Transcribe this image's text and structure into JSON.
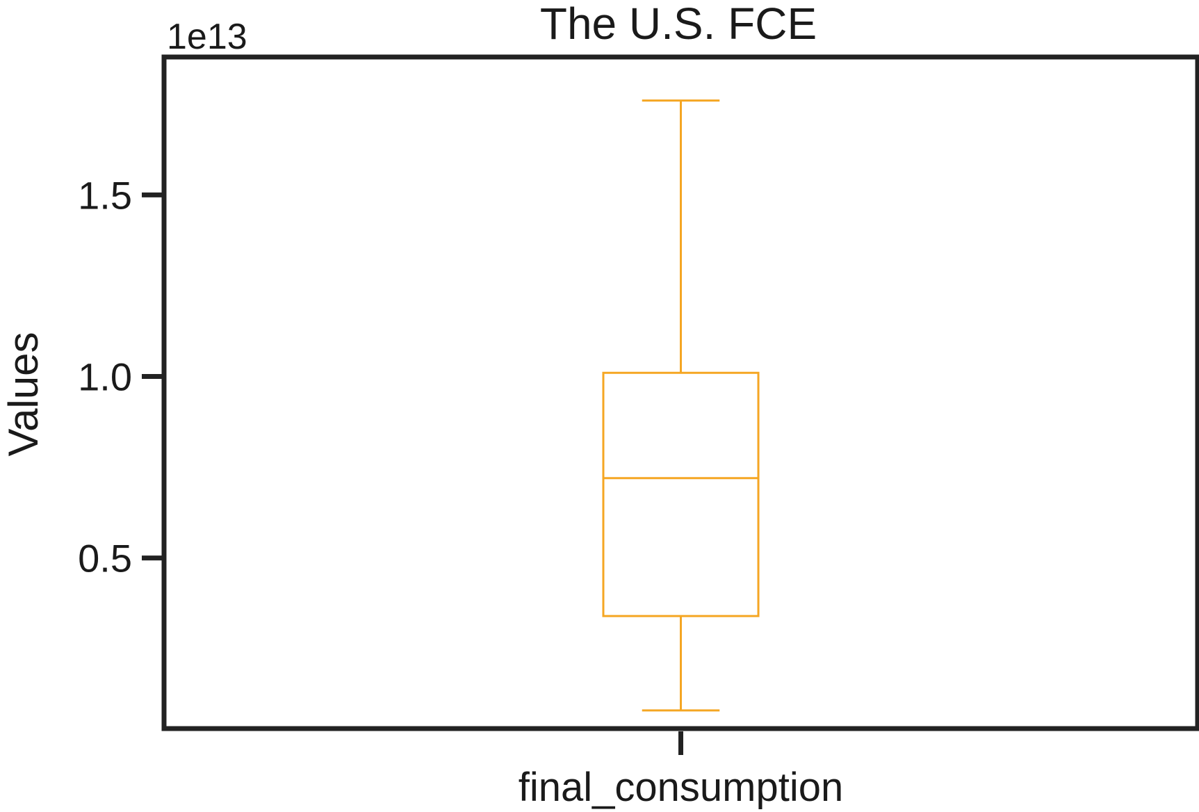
{
  "chart_data": {
    "type": "box",
    "title": "The U.S. FCE",
    "ylabel": "Values",
    "xlabel": "",
    "offset_label": "1e13",
    "categories": [
      "final_consumption"
    ],
    "y_ticks": [
      0.5,
      1.0,
      1.5
    ],
    "y_tick_labels": [
      "0.5",
      "1.0",
      "1.5"
    ],
    "ylim": [
      0.03,
      1.88
    ],
    "y_scale_multiplier": 10000000000000.0,
    "grid": false,
    "legend": "none",
    "boxes": [
      {
        "category": "final_consumption",
        "whisker_low": 0.08,
        "q1": 0.34,
        "median": 0.72,
        "q3": 1.01,
        "whisker_high": 1.76
      }
    ],
    "colors": {
      "box": "#f5a623",
      "axes": "#222222"
    }
  }
}
